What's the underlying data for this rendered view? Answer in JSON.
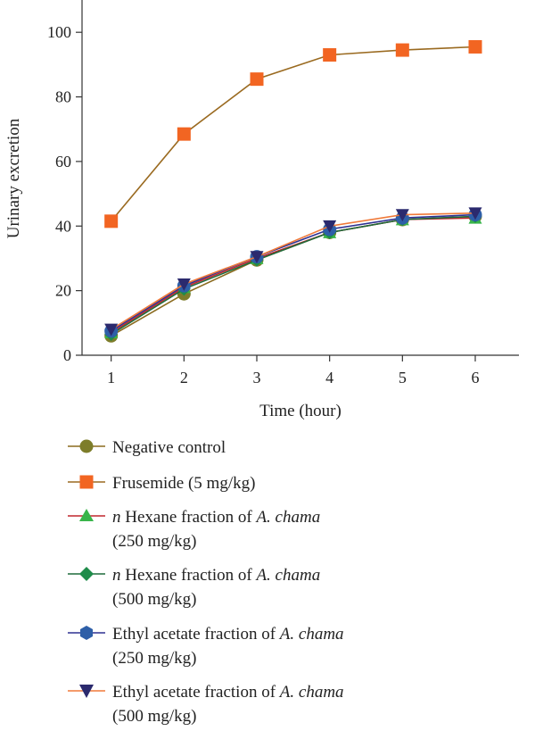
{
  "chart_data": {
    "type": "line",
    "xlabel": "Time (hour)",
    "ylabel": "Urinary excretion",
    "x": [
      1,
      2,
      3,
      4,
      5,
      6
    ],
    "xlim": [
      0.6,
      6.6
    ],
    "ylim": [
      0,
      110
    ],
    "yticks": [
      0,
      20,
      40,
      60,
      80,
      100
    ],
    "xticks": [
      1,
      2,
      3,
      4,
      5,
      6
    ],
    "grid": false,
    "legend_position": "bottom",
    "series": [
      {
        "key": "neg",
        "name": "Negative control",
        "line_color": "#8b6b1f",
        "marker_color": "#7d7d2a",
        "marker": "circle",
        "values": [
          6,
          19,
          29.5,
          38,
          42,
          43
        ]
      },
      {
        "key": "fru",
        "name": "Frusemide (5 mg/kg)",
        "line_color": "#9a6a20",
        "marker_color": "#f26522",
        "marker": "square",
        "values": [
          41.5,
          68.5,
          85.5,
          93,
          94.5,
          95.5
        ]
      },
      {
        "key": "hex250",
        "name_prefix": "n",
        "name_main": " Hexane fraction of ",
        "name_species": "A. chama",
        "name_dose": "(250 mg/kg)",
        "line_color": "#c0272d",
        "marker_color": "#39b54a",
        "marker": "triangle-up",
        "values": [
          7,
          21,
          30,
          38,
          42,
          42.5
        ]
      },
      {
        "key": "hex500",
        "name_prefix": "n",
        "name_main": " Hexane fraction of ",
        "name_species": "A. chama",
        "name_dose": "(500 mg/kg)",
        "line_color": "#1e6b3c",
        "marker_color": "#1e8c4a",
        "marker": "diamond",
        "values": [
          6.5,
          20.5,
          29.5,
          38,
          42,
          43
        ]
      },
      {
        "key": "eth250",
        "name_main": "Ethyl acetate fraction of ",
        "name_species": "A. chama",
        "name_dose": "(250 mg/kg)",
        "line_color": "#2e3192",
        "marker_color": "#2e5fa8",
        "marker": "circle",
        "values": [
          7.5,
          21.5,
          30.5,
          39,
          42.5,
          43.5
        ]
      },
      {
        "key": "eth500",
        "name_main": "Ethyl acetate fraction of ",
        "name_species": "A. chama",
        "name_dose": "(500 mg/kg)",
        "line_color": "#f07a3a",
        "marker_color": "#2b2a6e",
        "marker": "triangle-down",
        "values": [
          8,
          22,
          30.5,
          40,
          43.5,
          44
        ]
      }
    ]
  }
}
